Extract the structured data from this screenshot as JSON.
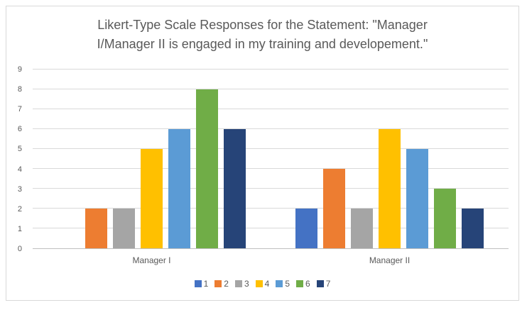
{
  "chart_data": {
    "type": "bar",
    "title": "Likert-Type Scale Responses for the Statement: \"Manager I/Manager II is engaged in my training and developement.\"",
    "title_lines": [
      "Likert-Type Scale Responses for the Statement: \"Manager",
      "I/Manager II is engaged in my training and developement.\""
    ],
    "categories": [
      "Manager I",
      "Manager II"
    ],
    "series": [
      {
        "name": "1",
        "color": "#4472C4",
        "values": [
          0,
          2
        ]
      },
      {
        "name": "2",
        "color": "#ED7D31",
        "values": [
          2,
          4
        ]
      },
      {
        "name": "3",
        "color": "#A5A5A5",
        "values": [
          2,
          2
        ]
      },
      {
        "name": "4",
        "color": "#FFC000",
        "values": [
          5,
          6
        ]
      },
      {
        "name": "5",
        "color": "#5B9BD5",
        "values": [
          6,
          5
        ]
      },
      {
        "name": "6",
        "color": "#70AD47",
        "values": [
          8,
          3
        ]
      },
      {
        "name": "7",
        "color": "#264478",
        "values": [
          6,
          2
        ]
      }
    ],
    "xlabel": "",
    "ylabel": "",
    "ylim": [
      0,
      9
    ],
    "yticks": [
      0,
      1,
      2,
      3,
      4,
      5,
      6,
      7,
      8,
      9
    ],
    "grid": true,
    "legend_position": "bottom"
  },
  "colors": {
    "text": "#595959",
    "gridline": "#D9D9D9",
    "axis_line": "#BFBFBF",
    "frame_border": "#D9D9D9",
    "background": "#FFFFFF"
  }
}
